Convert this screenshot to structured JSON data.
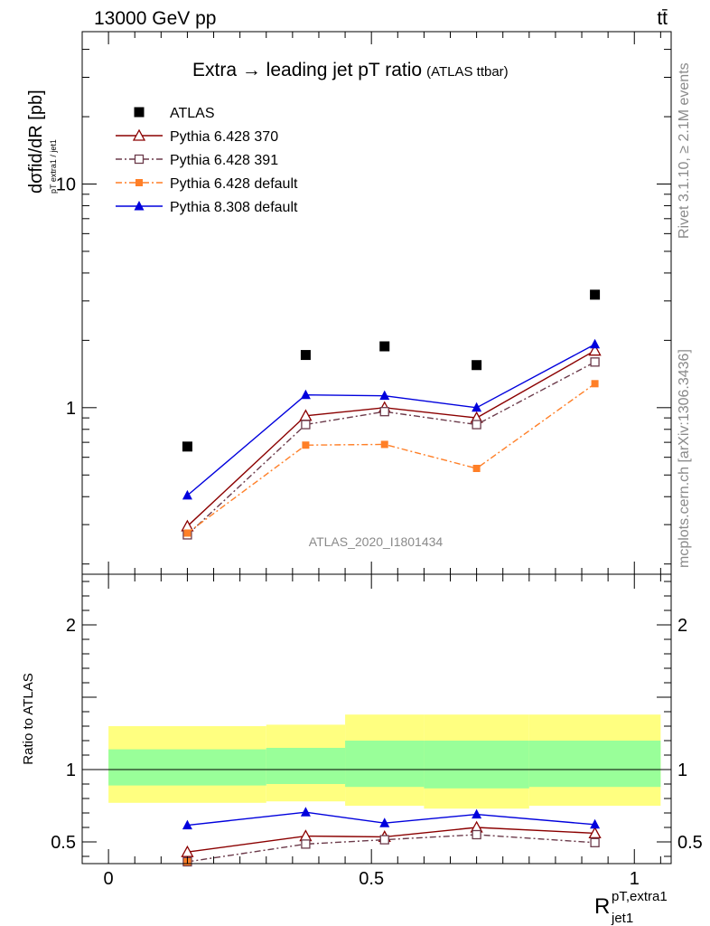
{
  "header": {
    "left": "13000 GeV pp",
    "right": "tt̄"
  },
  "side_labels": {
    "upper": "Rivet 3.1.10, ≥ 2.1M events",
    "lower": "mcplots.cern.ch [arXiv:1306.3436]"
  },
  "watermark": "ATLAS_2020_I1801434",
  "colors": {
    "atlas": "#000000",
    "p370": "#8b0000",
    "p391": "#6b3a4a",
    "p6def": "#ff7f27",
    "p8def": "#0000dd",
    "band_outer": "#ffff80",
    "band_inner": "#99ff99"
  },
  "chart_data": [
    {
      "type": "line",
      "panel": "main",
      "title": "Extra → leading jet pT ratio",
      "title_note": "(ATLAS ttbar)",
      "ylabel": "dσfid/dR [pb]",
      "ylabel_sub": "pT extra1 / jet1",
      "yscale": "log",
      "ylim": [
        0.18,
        48
      ],
      "xlim": [
        -0.05,
        1.07
      ],
      "yticks": [
        "1",
        "10"
      ],
      "legend_position": "top-left",
      "x": [
        0.15,
        0.375,
        0.525,
        0.7,
        0.925
      ],
      "xerr": [
        [
          0.0,
          0.3
        ],
        [
          0.3,
          0.45
        ],
        [
          0.45,
          0.6
        ],
        [
          0.6,
          0.8
        ],
        [
          0.8,
          1.05
        ]
      ],
      "series": [
        {
          "name": "ATLAS",
          "key": "atlas",
          "marker": "square-filled",
          "line": "none",
          "values": [
            0.67,
            1.72,
            1.88,
            1.55,
            3.2
          ]
        },
        {
          "name": "Pythia 6.428 370",
          "key": "p370",
          "marker": "triangle-open",
          "line": "solid",
          "values": [
            0.295,
            0.92,
            1.0,
            0.9,
            1.8
          ]
        },
        {
          "name": "Pythia 6.428 391",
          "key": "p391",
          "marker": "square-open",
          "line": "dashdot",
          "values": [
            0.27,
            0.84,
            0.96,
            0.84,
            1.6
          ]
        },
        {
          "name": "Pythia 6.428 default",
          "key": "p6def",
          "marker": "square-filled-small",
          "line": "dashdot",
          "values": [
            0.275,
            0.68,
            0.685,
            0.535,
            1.28
          ]
        },
        {
          "name": "Pythia 8.308 default",
          "key": "p8def",
          "marker": "triangle-filled",
          "line": "solid",
          "values": [
            0.405,
            1.14,
            1.13,
            1.0,
            1.92
          ]
        }
      ]
    },
    {
      "type": "line",
      "panel": "ratio",
      "ylabel": "Ratio to ATLAS",
      "xlabel": "R jet1 pT,extra1",
      "xlabel_main": "R",
      "xlabel_sup": "pT,extra1",
      "xlabel_sub": "jet1",
      "ylim": [
        0.35,
        2.35
      ],
      "xlim": [
        -0.05,
        1.07
      ],
      "xticks": [
        "0",
        "0.5",
        "1"
      ],
      "yticks": [
        "0.5",
        "1",
        "2"
      ],
      "bands": [
        {
          "x": [
            0.0,
            0.3
          ],
          "inner": [
            0.89,
            1.14
          ],
          "outer": [
            0.77,
            1.3
          ]
        },
        {
          "x": [
            0.3,
            0.45
          ],
          "inner": [
            0.9,
            1.15
          ],
          "outer": [
            0.78,
            1.31
          ]
        },
        {
          "x": [
            0.45,
            0.6
          ],
          "inner": [
            0.88,
            1.2
          ],
          "outer": [
            0.75,
            1.38
          ]
        },
        {
          "x": [
            0.6,
            0.8
          ],
          "inner": [
            0.87,
            1.2
          ],
          "outer": [
            0.73,
            1.38
          ]
        },
        {
          "x": [
            0.8,
            1.05
          ],
          "inner": [
            0.88,
            1.2
          ],
          "outer": [
            0.75,
            1.38
          ]
        }
      ],
      "x": [
        0.15,
        0.375,
        0.525,
        0.7,
        0.925
      ],
      "series": [
        {
          "name": "Pythia 6.428 370",
          "key": "p370",
          "marker": "triangle-open",
          "line": "solid",
          "values": [
            0.43,
            0.54,
            0.535,
            0.6,
            0.56
          ]
        },
        {
          "name": "Pythia 6.428 391",
          "key": "p391",
          "marker": "square-open",
          "line": "dashdot",
          "values": [
            0.35,
            0.485,
            0.515,
            0.55,
            0.495
          ]
        },
        {
          "name": "Pythia 6.428 default",
          "key": "p6def",
          "marker": "square-filled-small",
          "line": "dashdot",
          "values": [
            0.35,
            null,
            null,
            null,
            null
          ]
        },
        {
          "name": "Pythia 8.308 default",
          "key": "p8def",
          "marker": "triangle-filled",
          "line": "solid",
          "values": [
            0.615,
            0.705,
            0.63,
            0.69,
            0.62
          ]
        }
      ]
    }
  ]
}
